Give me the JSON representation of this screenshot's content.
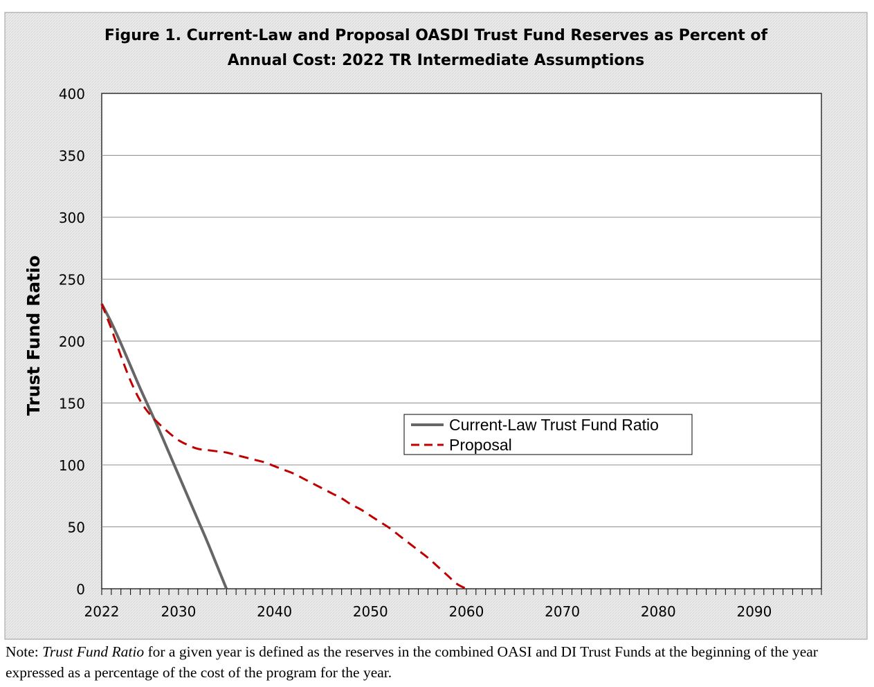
{
  "chart_data": {
    "type": "line",
    "title_line1": "Figure 1. Current-Law and Proposal OASDI Trust Fund Reserves as Percent of",
    "title_line2": "Annual Cost: 2022 TR Intermediate Assumptions",
    "xlabel": "",
    "ylabel": "Trust Fund Ratio",
    "xlim": [
      2022,
      2097
    ],
    "ylim": [
      0,
      400
    ],
    "x_ticks": [
      2022,
      2030,
      2040,
      2050,
      2060,
      2070,
      2080,
      2090
    ],
    "y_ticks": [
      0,
      50,
      100,
      150,
      200,
      250,
      300,
      350,
      400
    ],
    "grid": "horizontal",
    "legend_position": "center-right",
    "series": [
      {
        "name": "Current-Law Trust Fund Ratio",
        "color": "#666666",
        "style": "solid",
        "x": [
          2022,
          2023,
          2024,
          2025,
          2026,
          2027,
          2028,
          2029,
          2030,
          2031,
          2032,
          2033,
          2034,
          2035
        ],
        "y": [
          230,
          215,
          198,
          180,
          162,
          145,
          128,
          110,
          92,
          74,
          56,
          38,
          19,
          0
        ]
      },
      {
        "name": "Proposal",
        "color": "#c00000",
        "style": "dashed",
        "x": [
          2022,
          2023,
          2024,
          2025,
          2026,
          2027,
          2028,
          2029,
          2030,
          2031,
          2032,
          2033,
          2034,
          2035,
          2036,
          2037,
          2038,
          2039,
          2040,
          2041,
          2042,
          2043,
          2044,
          2045,
          2046,
          2047,
          2048,
          2049,
          2050,
          2051,
          2052,
          2053,
          2054,
          2055,
          2056,
          2057,
          2058,
          2059,
          2060
        ],
        "y": [
          230,
          210,
          188,
          168,
          152,
          141,
          133,
          126,
          120,
          116,
          113,
          112,
          111,
          110,
          108,
          106,
          104,
          102,
          99,
          96,
          93,
          89,
          85,
          81,
          77,
          73,
          68,
          64,
          59,
          54,
          49,
          43,
          37,
          31,
          25,
          18,
          11,
          4,
          0
        ]
      }
    ]
  },
  "note": {
    "prefix": "Note: ",
    "term": "Trust Fund Ratio",
    "text": " for a given year is defined as the reserves in the combined OASI and DI Trust Funds at the beginning of the year expressed as a percentage of the cost of the program for the year."
  }
}
